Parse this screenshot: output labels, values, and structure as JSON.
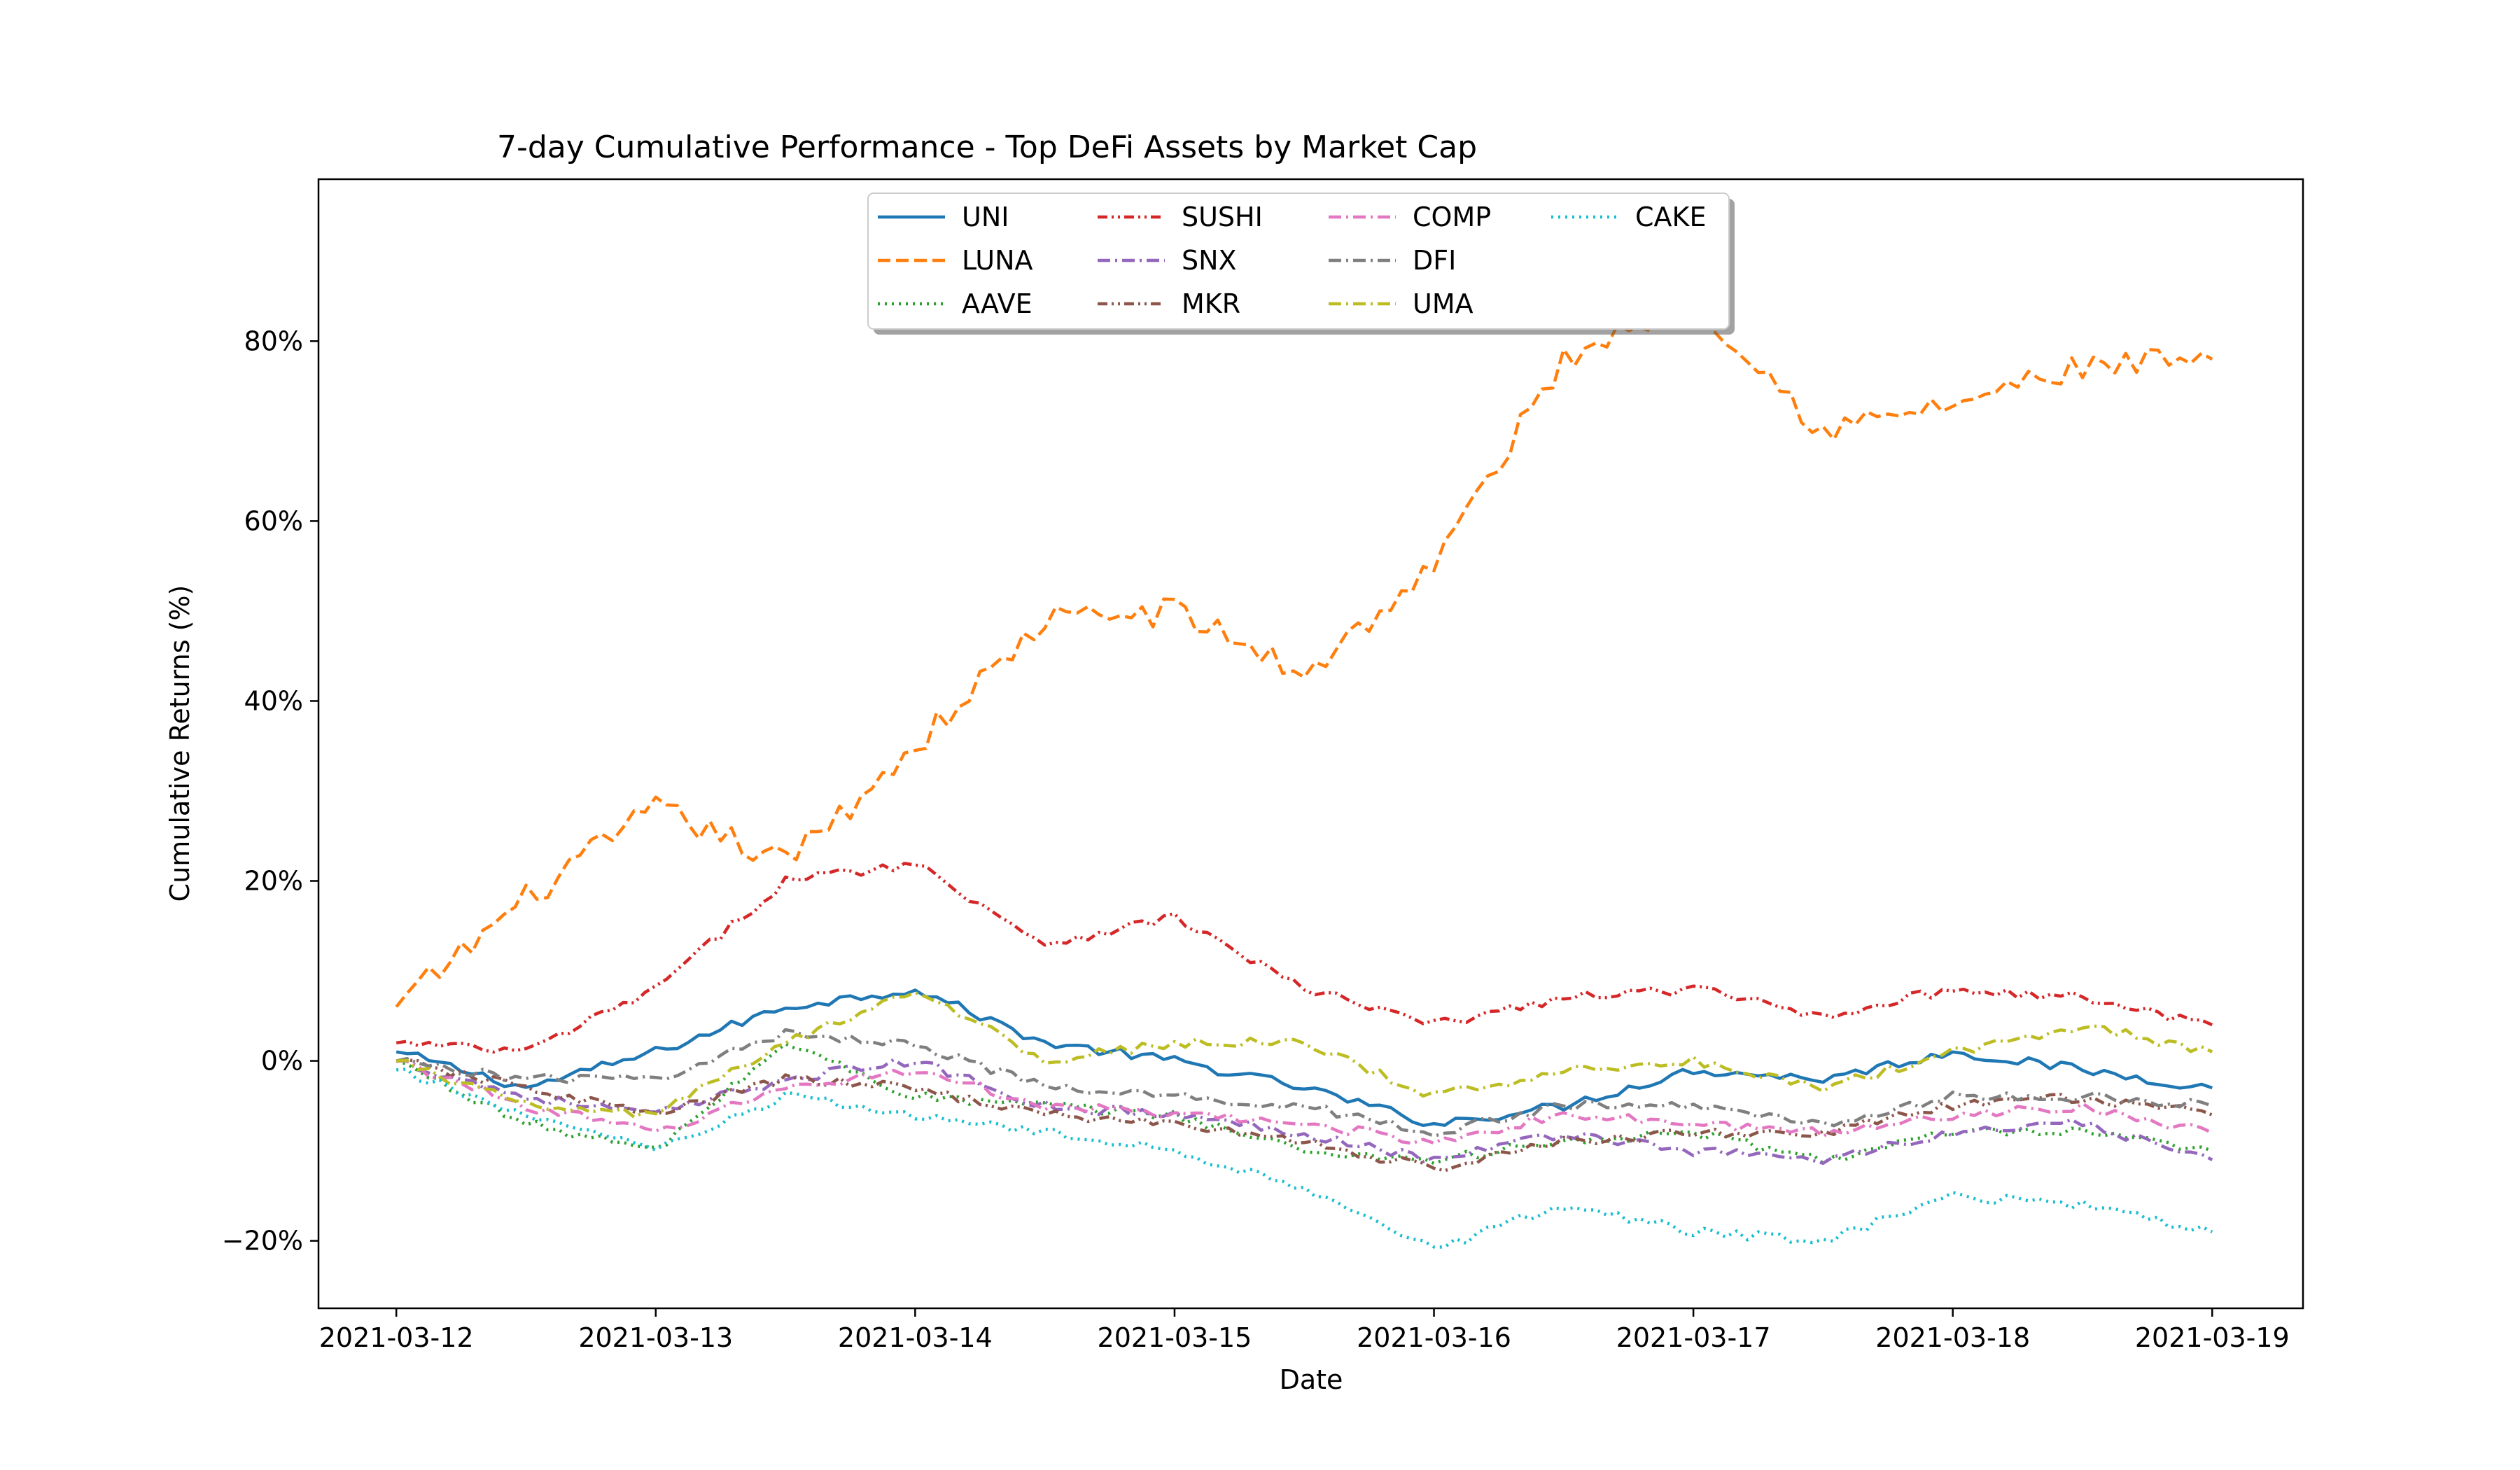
{
  "chart_data": {
    "type": "line",
    "title": "7-day Cumulative Performance - Top DeFi Assets by Market Cap",
    "xlabel": "Date",
    "ylabel": "Cumulative Returns (%)",
    "x_ticks": [
      "2021-03-12",
      "2021-03-13",
      "2021-03-14",
      "2021-03-15",
      "2021-03-16",
      "2021-03-17",
      "2021-03-18",
      "2021-03-19"
    ],
    "x_range_days": [
      -0.3,
      7.35
    ],
    "y_ticks": [
      -20,
      0,
      20,
      40,
      60,
      80
    ],
    "y_tick_labels": [
      "−20%",
      "0%",
      "20%",
      "40%",
      "60%",
      "80%"
    ],
    "ylim": [
      -27.5,
      98
    ],
    "grid": false,
    "legend_position": "top-center",
    "legend_columns": 4,
    "sampling": "x values are days since 2021-03-12 00:00, one point every 12 hours (0 to 7 days); values are cumulative return in %",
    "x": [
      0,
      0.5,
      1,
      1.5,
      2,
      2.5,
      3,
      3.5,
      4,
      4.5,
      5,
      5.5,
      6,
      6.5,
      7
    ],
    "series": [
      {
        "name": "UNI",
        "color": "#1f77b4",
        "dash": "solid",
        "values": [
          1,
          -3,
          1,
          6,
          8,
          2,
          0,
          -3,
          -7,
          -5,
          -1,
          -2,
          1,
          -1,
          -3
        ]
      },
      {
        "name": "LUNA",
        "color": "#ff7f0e",
        "dash": "dashed",
        "values": [
          6,
          18,
          28,
          22,
          35,
          49,
          50,
          43,
          55,
          78,
          85,
          70,
          73,
          77,
          78
        ]
      },
      {
        "name": "AAVE",
        "color": "#2ca02c",
        "dash": "dotted",
        "values": [
          0,
          -7,
          -10,
          2,
          -4,
          -5,
          -6,
          -10,
          -11,
          -9,
          -8,
          -11,
          -8,
          -8,
          -10
        ]
      },
      {
        "name": "SUSHI",
        "color": "#d62728",
        "dash": "dashdotdot",
        "values": [
          2,
          1,
          8,
          20,
          22,
          13,
          16,
          8,
          4,
          7,
          8,
          5,
          8,
          7,
          4
        ]
      },
      {
        "name": "SNX",
        "color": "#9467bd",
        "dash": "dashdot",
        "values": [
          0,
          -4,
          -6,
          -2,
          0,
          -5,
          -6,
          -8,
          -11,
          -8,
          -10,
          -11,
          -8,
          -7,
          -11
        ]
      },
      {
        "name": "MKR",
        "color": "#8c564b",
        "dash": "dashdotdot",
        "values": [
          0,
          -3,
          -6,
          -2,
          -3,
          -6,
          -7,
          -9,
          -12,
          -9,
          -8,
          -8,
          -5,
          -4,
          -6
        ]
      },
      {
        "name": "COMP",
        "color": "#e377c2",
        "dash": "dashdot",
        "values": [
          0,
          -5,
          -8,
          -3,
          -1,
          -5,
          -6,
          -7,
          -9,
          -6,
          -7,
          -8,
          -6,
          -5,
          -8
        ]
      },
      {
        "name": "DFI",
        "color": "#7f7f7f",
        "dash": "dashdot",
        "values": [
          0,
          -2,
          -2,
          3,
          2,
          -3,
          -4,
          -5,
          -8,
          -5,
          -5,
          -7,
          -4,
          -4,
          -5
        ]
      },
      {
        "name": "UMA",
        "color": "#bcbd22",
        "dash": "dashdot",
        "values": [
          0,
          -5,
          -6,
          2,
          8,
          0,
          2,
          2,
          -4,
          -1,
          0,
          -3,
          1,
          4,
          1
        ]
      },
      {
        "name": "CAKE",
        "color": "#17becf",
        "dash": "dotted",
        "values": [
          -1,
          -6,
          -10,
          -4,
          -6,
          -8,
          -10,
          -14,
          -21,
          -16,
          -19,
          -20,
          -15,
          -16,
          -19
        ]
      }
    ]
  }
}
